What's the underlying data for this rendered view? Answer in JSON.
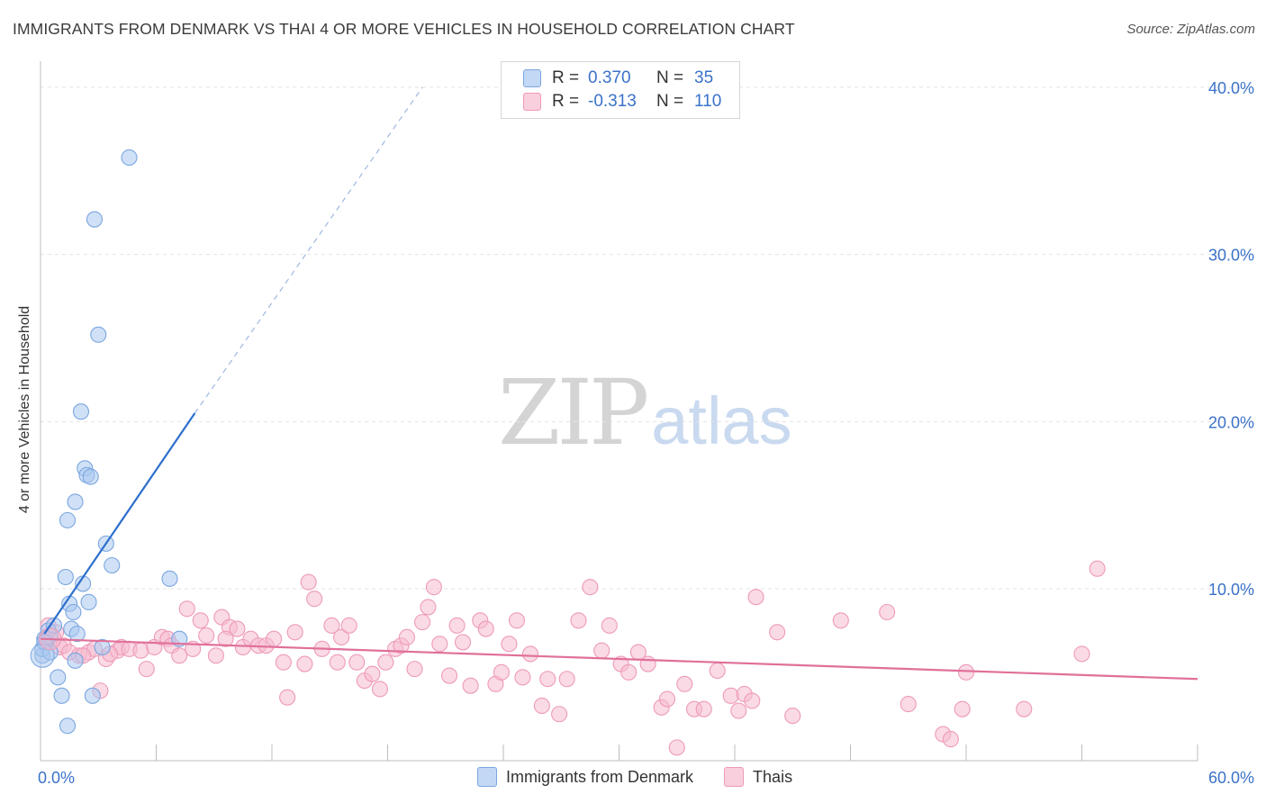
{
  "title": "IMMIGRANTS FROM DENMARK VS THAI 4 OR MORE VEHICLES IN HOUSEHOLD CORRELATION CHART",
  "source": "Source: ZipAtlas.com",
  "watermark": {
    "zip": "ZIP",
    "atlas": "atlas"
  },
  "legend": {
    "rows": [
      {
        "r_label": "R =",
        "r_value": "0.370",
        "n_label": "N =",
        "n_value": "35"
      },
      {
        "r_label": "R =",
        "r_value": "-0.313",
        "n_label": "N =",
        "n_value": "110"
      }
    ]
  },
  "colors": {
    "blue_fill": "#aac8f0",
    "blue_stroke": "#7aa6e0",
    "blue_line": "#2d6fcc",
    "pink_fill": "#f6bcd0",
    "pink_stroke": "#ee9ab8",
    "pink_line": "#e0709a",
    "tick_label": "#3a72c9",
    "grid": "#e3e3e3"
  },
  "chart_data": {
    "type": "scatter",
    "title": "IMMIGRANTS FROM DENMARK VS THAI 4 OR MORE VEHICLES IN HOUSEHOLD CORRELATION CHART",
    "xlabel": "",
    "ylabel": "4 or more Vehicles in Household",
    "xlim": [
      0,
      60
    ],
    "ylim": [
      0,
      40
    ],
    "x_tick_labels": [
      "0.0%",
      "60.0%"
    ],
    "y_ticks": [
      10,
      20,
      30,
      40
    ],
    "y_tick_labels": [
      "10.0%",
      "20.0%",
      "30.0%",
      "40.0%"
    ],
    "grid": true,
    "legend_position": "top-center",
    "series": [
      {
        "name": "Immigrants from Denmark",
        "color": "#aac8f0",
        "points": [
          [
            0.1,
            6.0
          ],
          [
            0.2,
            7.0
          ],
          [
            0.3,
            6.8
          ],
          [
            0.4,
            7.5
          ],
          [
            0.5,
            7.2
          ],
          [
            0.7,
            7.8
          ],
          [
            0.9,
            4.7
          ],
          [
            1.1,
            3.6
          ],
          [
            1.3,
            10.7
          ],
          [
            1.4,
            1.8
          ],
          [
            1.4,
            14.1
          ],
          [
            1.5,
            9.1
          ],
          [
            1.6,
            7.6
          ],
          [
            1.7,
            8.6
          ],
          [
            1.8,
            5.7
          ],
          [
            1.8,
            15.2
          ],
          [
            1.9,
            7.3
          ],
          [
            2.1,
            20.6
          ],
          [
            2.2,
            10.3
          ],
          [
            2.3,
            17.2
          ],
          [
            2.4,
            16.8
          ],
          [
            2.5,
            9.2
          ],
          [
            2.6,
            16.7
          ],
          [
            2.7,
            3.6
          ],
          [
            2.8,
            32.1
          ],
          [
            3.0,
            25.2
          ],
          [
            3.2,
            6.5
          ],
          [
            3.4,
            12.7
          ],
          [
            3.7,
            11.4
          ],
          [
            4.6,
            35.8
          ],
          [
            6.7,
            10.6
          ],
          [
            7.2,
            7.0
          ],
          [
            0.1,
            6.4
          ],
          [
            0.2,
            6.8
          ],
          [
            0.5,
            6.2
          ]
        ],
        "trend": {
          "x": [
            0.2,
            8.0
          ],
          "y": [
            7.3,
            20.5
          ],
          "dashed_extension_to": [
            19.8,
            40.0
          ]
        }
      },
      {
        "name": "Thais",
        "color": "#f6bcd0",
        "points": [
          [
            0.3,
            7.0
          ],
          [
            0.4,
            7.8
          ],
          [
            0.6,
            6.9
          ],
          [
            0.8,
            7.4
          ],
          [
            1.0,
            6.5
          ],
          [
            1.2,
            6.6
          ],
          [
            1.5,
            6.2
          ],
          [
            2.0,
            6.0
          ],
          [
            2.5,
            6.2
          ],
          [
            2.8,
            6.4
          ],
          [
            3.1,
            3.9
          ],
          [
            3.4,
            5.8
          ],
          [
            4.0,
            6.3
          ],
          [
            4.2,
            6.5
          ],
          [
            4.6,
            6.4
          ],
          [
            5.2,
            6.3
          ],
          [
            5.5,
            5.2
          ],
          [
            5.9,
            6.5
          ],
          [
            6.3,
            7.1
          ],
          [
            6.6,
            7.0
          ],
          [
            6.8,
            6.6
          ],
          [
            7.2,
            6.0
          ],
          [
            7.6,
            8.8
          ],
          [
            7.9,
            6.4
          ],
          [
            8.3,
            8.1
          ],
          [
            8.6,
            7.2
          ],
          [
            9.1,
            6.0
          ],
          [
            9.4,
            8.3
          ],
          [
            9.8,
            7.7
          ],
          [
            10.2,
            7.6
          ],
          [
            10.5,
            6.5
          ],
          [
            10.9,
            7.0
          ],
          [
            11.3,
            6.6
          ],
          [
            11.7,
            6.6
          ],
          [
            12.1,
            7.0
          ],
          [
            12.6,
            5.6
          ],
          [
            12.8,
            3.5
          ],
          [
            13.2,
            7.4
          ],
          [
            13.7,
            5.5
          ],
          [
            13.9,
            10.4
          ],
          [
            14.2,
            9.4
          ],
          [
            14.6,
            6.4
          ],
          [
            15.1,
            7.8
          ],
          [
            15.4,
            5.6
          ],
          [
            15.6,
            7.1
          ],
          [
            16.0,
            7.8
          ],
          [
            16.4,
            5.6
          ],
          [
            16.8,
            4.5
          ],
          [
            17.2,
            4.9
          ],
          [
            17.6,
            4.0
          ],
          [
            17.9,
            5.6
          ],
          [
            18.4,
            6.4
          ],
          [
            18.7,
            6.6
          ],
          [
            19.0,
            7.1
          ],
          [
            19.4,
            5.2
          ],
          [
            19.8,
            8.0
          ],
          [
            20.1,
            8.9
          ],
          [
            20.4,
            10.1
          ],
          [
            20.7,
            6.7
          ],
          [
            21.2,
            4.8
          ],
          [
            21.6,
            7.8
          ],
          [
            21.9,
            6.8
          ],
          [
            22.3,
            4.2
          ],
          [
            22.8,
            8.1
          ],
          [
            23.1,
            7.6
          ],
          [
            23.6,
            4.3
          ],
          [
            23.9,
            5.0
          ],
          [
            24.3,
            6.7
          ],
          [
            24.7,
            8.1
          ],
          [
            25.0,
            4.7
          ],
          [
            25.4,
            6.1
          ],
          [
            26.0,
            3.0
          ],
          [
            26.3,
            4.6
          ],
          [
            26.9,
            2.5
          ],
          [
            27.3,
            4.6
          ],
          [
            27.9,
            8.1
          ],
          [
            28.5,
            10.1
          ],
          [
            29.1,
            6.3
          ],
          [
            29.5,
            7.8
          ],
          [
            30.1,
            5.5
          ],
          [
            30.5,
            5.0
          ],
          [
            31.0,
            6.2
          ],
          [
            31.5,
            5.5
          ],
          [
            32.2,
            2.9
          ],
          [
            32.5,
            3.4
          ],
          [
            33.0,
            0.5
          ],
          [
            33.4,
            4.3
          ],
          [
            33.9,
            2.8
          ],
          [
            34.4,
            2.8
          ],
          [
            35.1,
            5.1
          ],
          [
            35.8,
            3.6
          ],
          [
            36.2,
            2.7
          ],
          [
            36.5,
            3.7
          ],
          [
            36.9,
            3.3
          ],
          [
            37.1,
            9.5
          ],
          [
            38.2,
            7.4
          ],
          [
            39.0,
            2.4
          ],
          [
            41.5,
            8.1
          ],
          [
            43.9,
            8.6
          ],
          [
            45.0,
            3.1
          ],
          [
            46.8,
            1.3
          ],
          [
            47.2,
            1.0
          ],
          [
            47.8,
            2.8
          ],
          [
            48.0,
            5.0
          ],
          [
            51.0,
            2.8
          ],
          [
            54.0,
            6.1
          ],
          [
            54.8,
            11.2
          ],
          [
            2.2,
            6.0
          ],
          [
            3.6,
            6.1
          ],
          [
            9.6,
            7.0
          ]
        ],
        "trend": {
          "x": [
            0,
            60
          ],
          "y": [
            7.0,
            4.6
          ]
        }
      }
    ]
  }
}
